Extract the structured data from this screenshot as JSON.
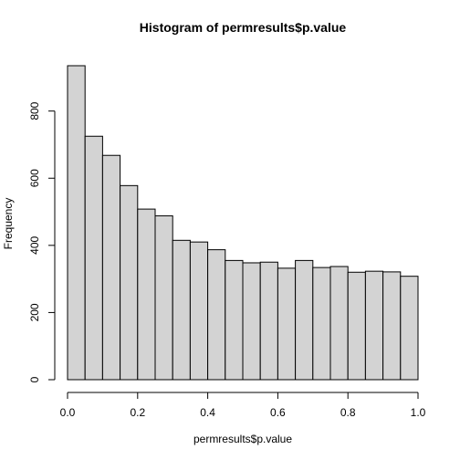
{
  "chart_data": {
    "type": "bar",
    "title": "Histogram of permresults$p.value",
    "xlabel": "permresults$p.value",
    "ylabel": "Frequency",
    "bin_edges": [
      0.0,
      0.05,
      0.1,
      0.15,
      0.2,
      0.25,
      0.3,
      0.35,
      0.4,
      0.45,
      0.5,
      0.55,
      0.6,
      0.65,
      0.7,
      0.75,
      0.8,
      0.85,
      0.9,
      0.95,
      1.0
    ],
    "values": [
      935,
      725,
      668,
      578,
      508,
      488,
      415,
      410,
      387,
      355,
      348,
      350,
      332,
      355,
      334,
      337,
      320,
      323,
      321,
      308
    ],
    "xlim": [
      0,
      1
    ],
    "ylim": [
      0,
      935
    ],
    "x_ticks": [
      0.0,
      0.2,
      0.4,
      0.6,
      0.8,
      1.0
    ],
    "x_tick_labels": [
      "0.0",
      "0.2",
      "0.4",
      "0.6",
      "0.8",
      "1.0"
    ],
    "y_ticks": [
      0,
      200,
      400,
      600,
      800
    ],
    "y_tick_labels": [
      "0",
      "200",
      "400",
      "600",
      "800"
    ],
    "bar_fill": "#d3d3d3",
    "bar_stroke": "#000000",
    "grid": false
  }
}
